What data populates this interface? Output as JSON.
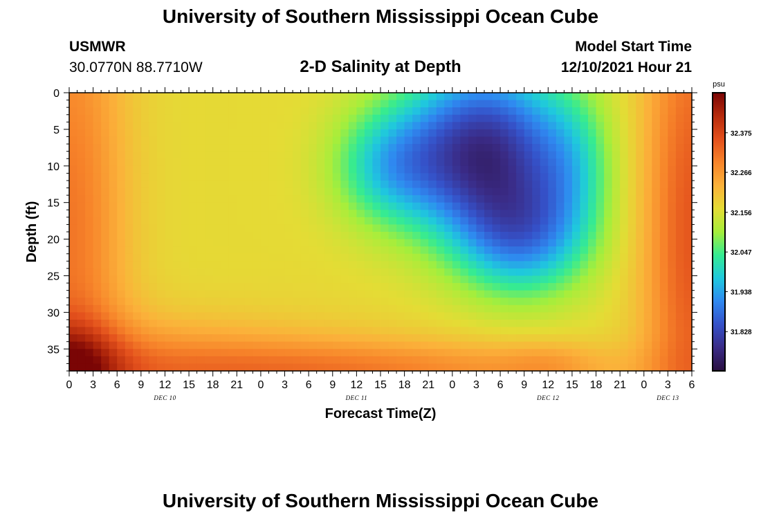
{
  "header": {
    "title": "University of Southern Mississippi Ocean Cube",
    "station": "USMWR",
    "coordinates": "30.0770N  88.7710W",
    "subtitle": "2-D Salinity at Depth",
    "model_start_label": "Model Start Time",
    "model_start_value": "12/10/2021 Hour 21"
  },
  "footer": {
    "title": "University of Southern Mississippi Ocean Cube"
  },
  "chart_data": {
    "type": "heatmap",
    "title": "2-D Salinity at Depth",
    "xlabel": "Forecast Time(Z)",
    "ylabel": "Depth (ft)",
    "x_unit": "hours from DEC 10 00Z",
    "xlim": [
      0,
      78
    ],
    "ylim": [
      0,
      38
    ],
    "y_inverted": true,
    "x_ticks": [
      {
        "value": 0,
        "label": "0"
      },
      {
        "value": 3,
        "label": "3"
      },
      {
        "value": 6,
        "label": "6"
      },
      {
        "value": 9,
        "label": "9"
      },
      {
        "value": 12,
        "label": "12"
      },
      {
        "value": 15,
        "label": "15"
      },
      {
        "value": 18,
        "label": "18"
      },
      {
        "value": 21,
        "label": "21"
      },
      {
        "value": 24,
        "label": "0"
      },
      {
        "value": 27,
        "label": "3"
      },
      {
        "value": 30,
        "label": "6"
      },
      {
        "value": 33,
        "label": "9"
      },
      {
        "value": 36,
        "label": "12"
      },
      {
        "value": 39,
        "label": "15"
      },
      {
        "value": 42,
        "label": "18"
      },
      {
        "value": 45,
        "label": "21"
      },
      {
        "value": 48,
        "label": "0"
      },
      {
        "value": 51,
        "label": "3"
      },
      {
        "value": 54,
        "label": "6"
      },
      {
        "value": 57,
        "label": "9"
      },
      {
        "value": 60,
        "label": "12"
      },
      {
        "value": 63,
        "label": "15"
      },
      {
        "value": 66,
        "label": "18"
      },
      {
        "value": 69,
        "label": "21"
      },
      {
        "value": 72,
        "label": "0"
      },
      {
        "value": 75,
        "label": "3"
      },
      {
        "value": 78,
        "label": "6"
      }
    ],
    "date_labels": [
      {
        "value": 12,
        "label": "DEC 10"
      },
      {
        "value": 36,
        "label": "DEC 11"
      },
      {
        "value": 60,
        "label": "DEC 12"
      },
      {
        "value": 75,
        "label": "DEC 13"
      }
    ],
    "y_ticks": [
      0,
      5,
      10,
      15,
      20,
      25,
      30,
      35
    ],
    "colorbar": {
      "unit": "psu",
      "range": [
        31.72,
        32.485
      ],
      "ticks": [
        32.375,
        32.266,
        32.156,
        32.047,
        31.938,
        31.828
      ],
      "tick_labels": [
        "32.375",
        "32.266",
        "32.156",
        "32.047",
        "31.938",
        "31.828"
      ],
      "colors": [
        "#2a0f40",
        "#3a2b86",
        "#3551c8",
        "#2f88f0",
        "#1fc8de",
        "#36eb91",
        "#a6ee3b",
        "#e4dc35",
        "#fbb13a",
        "#f7842a",
        "#e3501c",
        "#b52a0c",
        "#7a0505"
      ]
    },
    "field": {
      "description": "Salinity (psu) versus forecast time (x) and depth (y); low-salinity core near DEC 11 12Z to DEC 12 15Z at 0-30 ft",
      "background_psu": 32.17,
      "components": [
        {
          "t": 0,
          "d": 19,
          "st": 7,
          "sd": 40,
          "amp": 0.14
        },
        {
          "t": 0,
          "d": 38,
          "st": 6,
          "sd": 6,
          "amp": 0.12
        },
        {
          "t": 6,
          "d": 38,
          "st": 30,
          "sd": 7,
          "amp": 0.12
        },
        {
          "t": 40,
          "d": 38,
          "st": 30,
          "sd": 4,
          "amp": 0.1
        },
        {
          "t": 60,
          "d": 37,
          "st": 6,
          "sd": 3,
          "amp": 0.04
        },
        {
          "t": 78,
          "d": 19,
          "st": 6,
          "sd": 40,
          "amp": 0.18
        },
        {
          "t": 52,
          "d": 8,
          "st": 10,
          "sd": 12,
          "amp": -0.38
        },
        {
          "t": 57,
          "d": 20,
          "st": 8,
          "sd": 8,
          "amp": -0.2
        },
        {
          "t": 40,
          "d": 10,
          "st": 7,
          "sd": 8,
          "amp": -0.16
        },
        {
          "t": 63,
          "d": 10,
          "st": 5,
          "sd": 10,
          "amp": -0.1
        }
      ]
    }
  }
}
